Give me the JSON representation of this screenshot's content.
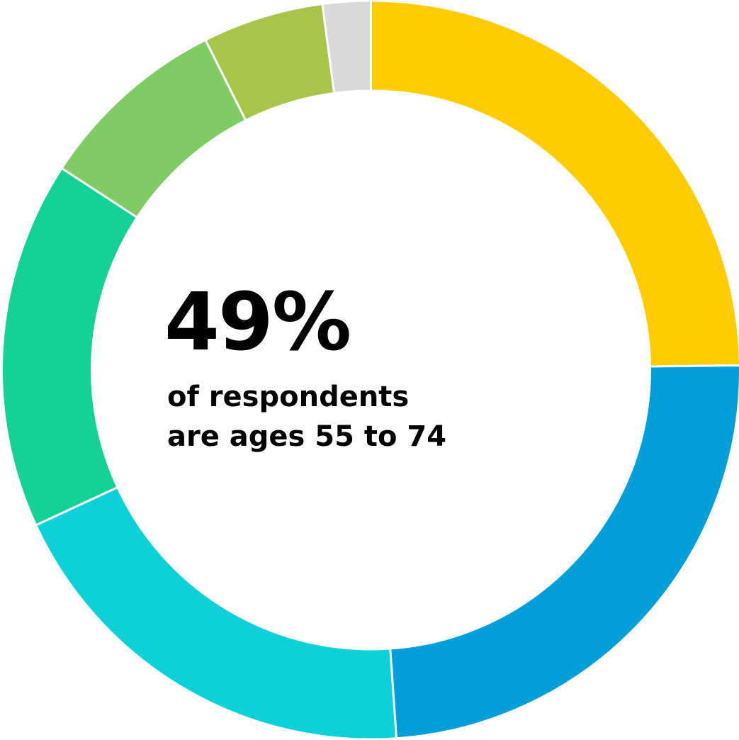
{
  "chart_data": {
    "type": "pie",
    "donut": true,
    "slices": [
      {
        "value": 24.8,
        "color": "#FFCC00"
      },
      {
        "value": 24.1,
        "color": "#019FD9"
      },
      {
        "value": 19.2,
        "color": "#0DD0D9"
      },
      {
        "value": 16.1,
        "color": "#14D195"
      },
      {
        "value": 8.4,
        "color": "#7FCB64"
      },
      {
        "value": 5.3,
        "color": "#A7C44B"
      },
      {
        "value": 2.1,
        "color": "#D9D9D9"
      }
    ],
    "start_angle_deg": 0,
    "direction": "clockwise",
    "separator_color": "#FFFFFF",
    "annotation": {
      "value": "49%",
      "lines": [
        "of respondents",
        "are ages 55 to 74"
      ]
    }
  }
}
